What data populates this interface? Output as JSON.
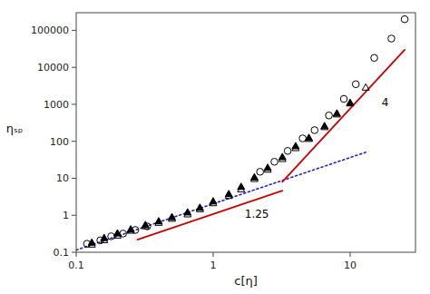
{
  "chart_data": {
    "type": "scatter",
    "title": "",
    "xlabel": "c[η]",
    "ylabel": "ηₛₚ",
    "log": true,
    "grid": false,
    "xlim": [
      0.1,
      30
    ],
    "ylim": [
      0.1,
      300000
    ],
    "xticks": [
      0.1,
      1,
      10
    ],
    "yticks": [
      0.1,
      1,
      10,
      100,
      1000,
      10000,
      100000
    ],
    "series": [
      {
        "type": "scatter",
        "marker": "circle-open",
        "color": "#000000",
        "x": [
          0.12,
          0.15,
          0.18,
          0.22,
          0.27,
          0.33,
          2.2,
          2.8,
          3.5,
          4.5,
          5.5,
          7.0,
          9.0,
          11.0,
          15.0,
          20.0,
          25.0
        ],
        "values": [
          0.17,
          0.21,
          0.27,
          0.32,
          0.4,
          0.5,
          15.0,
          28.0,
          55.0,
          120.0,
          200.0,
          500.0,
          1400.0,
          3500.0,
          18000.0,
          60000.0,
          200000.0
        ]
      },
      {
        "type": "scatter",
        "marker": "triangle-open",
        "color": "#000000",
        "x": [
          0.13,
          0.16,
          0.2,
          0.25,
          0.32,
          0.4,
          0.5,
          0.65,
          0.8,
          1.0,
          1.3,
          1.6,
          2.0,
          2.5,
          3.2,
          4.0,
          5.0,
          6.5,
          8.0,
          10.0,
          13.0
        ],
        "values": [
          0.16,
          0.21,
          0.28,
          0.38,
          0.5,
          0.62,
          0.8,
          1.05,
          1.45,
          2.1,
          3.3,
          5.0,
          9.5,
          17.0,
          33.0,
          65.0,
          115.0,
          240.0,
          530.0,
          1050.0,
          2800.0
        ]
      },
      {
        "type": "scatter",
        "marker": "triangle",
        "color": "#000000",
        "x": [
          0.13,
          0.16,
          0.2,
          0.25,
          0.32,
          0.4,
          0.5,
          0.65,
          0.8,
          1.0,
          1.3,
          1.6,
          2.0,
          2.5,
          3.2,
          4.0,
          5.0,
          6.5,
          8.0,
          10.0
        ],
        "values": [
          0.18,
          0.24,
          0.32,
          0.41,
          0.54,
          0.68,
          0.88,
          1.18,
          1.58,
          2.35,
          3.7,
          5.8,
          10.5,
          19.0,
          37.0,
          73.0,
          122.0,
          255.0,
          560.0,
          1080.0
        ]
      },
      {
        "type": "line",
        "line_style": "dotted",
        "color": "#2222cc",
        "x": [
          0.1,
          13.0
        ],
        "values": [
          0.115,
          50.481
        ]
      },
      {
        "type": "line",
        "line_style": "solid",
        "color": "#cc0000",
        "x": [
          0.28,
          3.2
        ],
        "values": [
          0.22,
          4.623
        ]
      },
      {
        "type": "line",
        "line_style": "solid",
        "color": "#cc0000",
        "x": [
          3.2,
          25.0
        ],
        "values": [
          8.0,
          29802.32
        ]
      }
    ],
    "annotations": [
      {
        "text": "1.25",
        "x": 1.7,
        "y": 0.85
      },
      {
        "text": "4",
        "x": 17.0,
        "y": 900.0
      }
    ]
  }
}
